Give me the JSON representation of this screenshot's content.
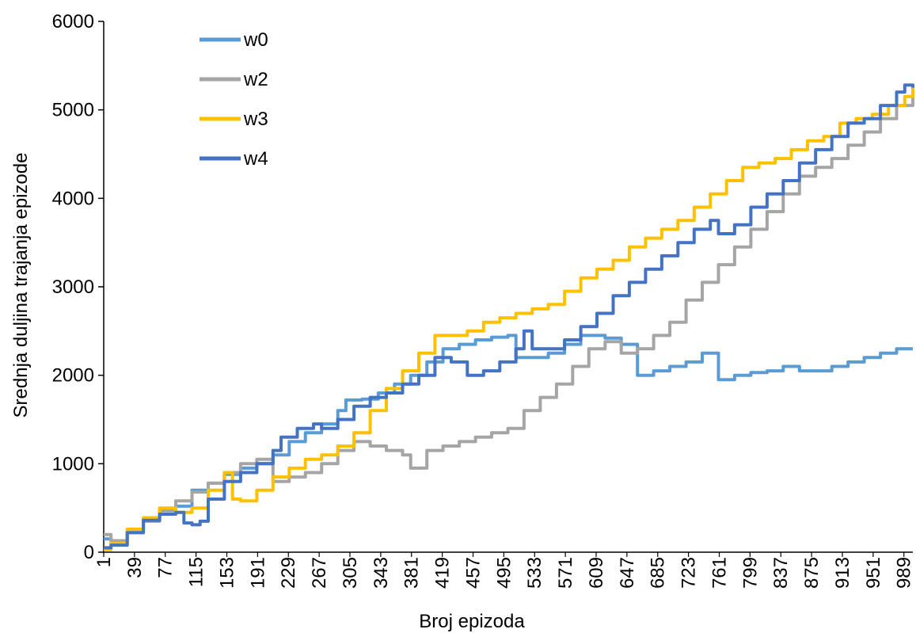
{
  "chart_data": {
    "type": "line",
    "title": "",
    "xlabel": "Broj epizoda",
    "ylabel": "Srednja duljina trajanja epizode",
    "xlim": [
      1,
      1000
    ],
    "ylim": [
      0,
      6000
    ],
    "y_ticks": [
      "0",
      "1000",
      "2000",
      "3000",
      "4000",
      "5000",
      "6000"
    ],
    "x_ticks": [
      "1",
      "39",
      "77",
      "115",
      "153",
      "191",
      "229",
      "267",
      "305",
      "343",
      "381",
      "419",
      "457",
      "495",
      "533",
      "571",
      "609",
      "647",
      "685",
      "723",
      "761",
      "799",
      "837",
      "875",
      "913",
      "951",
      "989"
    ],
    "grid": false,
    "legend_position": "top-left",
    "series": [
      {
        "name": "w0",
        "color": "#5b9bd5",
        "points": [
          [
            1,
            150
          ],
          [
            10,
            120
          ],
          [
            30,
            250
          ],
          [
            50,
            380
          ],
          [
            70,
            470
          ],
          [
            90,
            520
          ],
          [
            110,
            700
          ],
          [
            130,
            780
          ],
          [
            150,
            880
          ],
          [
            170,
            950
          ],
          [
            190,
            1000
          ],
          [
            210,
            1100
          ],
          [
            230,
            1250
          ],
          [
            250,
            1350
          ],
          [
            270,
            1450
          ],
          [
            290,
            1600
          ],
          [
            300,
            1720
          ],
          [
            320,
            1730
          ],
          [
            340,
            1800
          ],
          [
            360,
            1900
          ],
          [
            380,
            2000
          ],
          [
            400,
            2150
          ],
          [
            420,
            2300
          ],
          [
            440,
            2350
          ],
          [
            460,
            2400
          ],
          [
            480,
            2430
          ],
          [
            500,
            2450
          ],
          [
            510,
            2200
          ],
          [
            530,
            2200
          ],
          [
            550,
            2250
          ],
          [
            570,
            2350
          ],
          [
            590,
            2450
          ],
          [
            600,
            2450
          ],
          [
            620,
            2420
          ],
          [
            640,
            2350
          ],
          [
            660,
            2000
          ],
          [
            680,
            2050
          ],
          [
            700,
            2100
          ],
          [
            720,
            2150
          ],
          [
            740,
            2250
          ],
          [
            760,
            1950
          ],
          [
            780,
            2000
          ],
          [
            800,
            2030
          ],
          [
            820,
            2050
          ],
          [
            840,
            2100
          ],
          [
            860,
            2050
          ],
          [
            880,
            2050
          ],
          [
            900,
            2100
          ],
          [
            920,
            2150
          ],
          [
            940,
            2200
          ],
          [
            960,
            2250
          ],
          [
            980,
            2300
          ],
          [
            1000,
            2300
          ]
        ]
      },
      {
        "name": "w2",
        "color": "#a5a5a5",
        "points": [
          [
            1,
            200
          ],
          [
            10,
            130
          ],
          [
            30,
            230
          ],
          [
            50,
            350
          ],
          [
            70,
            480
          ],
          [
            90,
            580
          ],
          [
            110,
            680
          ],
          [
            130,
            780
          ],
          [
            150,
            900
          ],
          [
            170,
            1000
          ],
          [
            190,
            1050
          ],
          [
            210,
            800
          ],
          [
            230,
            850
          ],
          [
            250,
            900
          ],
          [
            270,
            1000
          ],
          [
            290,
            1150
          ],
          [
            310,
            1250
          ],
          [
            330,
            1200
          ],
          [
            350,
            1150
          ],
          [
            370,
            1100
          ],
          [
            380,
            950
          ],
          [
            400,
            1150
          ],
          [
            420,
            1200
          ],
          [
            440,
            1250
          ],
          [
            460,
            1300
          ],
          [
            480,
            1350
          ],
          [
            500,
            1400
          ],
          [
            520,
            1600
          ],
          [
            540,
            1750
          ],
          [
            560,
            1900
          ],
          [
            580,
            2100
          ],
          [
            600,
            2300
          ],
          [
            620,
            2380
          ],
          [
            640,
            2250
          ],
          [
            660,
            2300
          ],
          [
            680,
            2450
          ],
          [
            700,
            2600
          ],
          [
            720,
            2850
          ],
          [
            740,
            3050
          ],
          [
            760,
            3250
          ],
          [
            780,
            3450
          ],
          [
            800,
            3650
          ],
          [
            820,
            3850
          ],
          [
            840,
            4050
          ],
          [
            860,
            4250
          ],
          [
            880,
            4350
          ],
          [
            900,
            4450
          ],
          [
            920,
            4600
          ],
          [
            940,
            4750
          ],
          [
            960,
            4900
          ],
          [
            980,
            5050
          ],
          [
            1000,
            5200
          ]
        ]
      },
      {
        "name": "w3",
        "color": "#ffc000",
        "points": [
          [
            1,
            30
          ],
          [
            10,
            100
          ],
          [
            30,
            260
          ],
          [
            50,
            390
          ],
          [
            70,
            500
          ],
          [
            90,
            450
          ],
          [
            110,
            500
          ],
          [
            130,
            700
          ],
          [
            150,
            900
          ],
          [
            160,
            600
          ],
          [
            170,
            580
          ],
          [
            190,
            700
          ],
          [
            210,
            850
          ],
          [
            230,
            950
          ],
          [
            250,
            1050
          ],
          [
            270,
            1100
          ],
          [
            290,
            1200
          ],
          [
            310,
            1350
          ],
          [
            330,
            1600
          ],
          [
            350,
            1850
          ],
          [
            370,
            2050
          ],
          [
            390,
            2250
          ],
          [
            410,
            2450
          ],
          [
            430,
            2450
          ],
          [
            450,
            2500
          ],
          [
            470,
            2600
          ],
          [
            490,
            2650
          ],
          [
            510,
            2700
          ],
          [
            530,
            2750
          ],
          [
            550,
            2800
          ],
          [
            570,
            2950
          ],
          [
            590,
            3100
          ],
          [
            610,
            3200
          ],
          [
            630,
            3300
          ],
          [
            650,
            3450
          ],
          [
            670,
            3550
          ],
          [
            690,
            3650
          ],
          [
            710,
            3750
          ],
          [
            730,
            3900
          ],
          [
            750,
            4050
          ],
          [
            770,
            4200
          ],
          [
            790,
            4350
          ],
          [
            810,
            4400
          ],
          [
            830,
            4450
          ],
          [
            850,
            4550
          ],
          [
            870,
            4650
          ],
          [
            890,
            4700
          ],
          [
            910,
            4850
          ],
          [
            930,
            4900
          ],
          [
            950,
            4950
          ],
          [
            970,
            5050
          ],
          [
            990,
            5150
          ],
          [
            1000,
            5250
          ]
        ]
      },
      {
        "name": "w4",
        "color": "#4472c4",
        "points": [
          [
            1,
            50
          ],
          [
            10,
            80
          ],
          [
            30,
            220
          ],
          [
            50,
            360
          ],
          [
            70,
            430
          ],
          [
            90,
            450
          ],
          [
            100,
            330
          ],
          [
            110,
            310
          ],
          [
            120,
            350
          ],
          [
            130,
            600
          ],
          [
            150,
            800
          ],
          [
            170,
            900
          ],
          [
            190,
            1000
          ],
          [
            210,
            1150
          ],
          [
            220,
            1300
          ],
          [
            240,
            1400
          ],
          [
            260,
            1450
          ],
          [
            270,
            1400
          ],
          [
            290,
            1500
          ],
          [
            310,
            1650
          ],
          [
            330,
            1750
          ],
          [
            350,
            1800
          ],
          [
            370,
            1900
          ],
          [
            390,
            2000
          ],
          [
            410,
            2200
          ],
          [
            430,
            2150
          ],
          [
            450,
            2000
          ],
          [
            470,
            2050
          ],
          [
            490,
            2150
          ],
          [
            510,
            2300
          ],
          [
            520,
            2500
          ],
          [
            530,
            2300
          ],
          [
            550,
            2300
          ],
          [
            570,
            2400
          ],
          [
            590,
            2550
          ],
          [
            610,
            2700
          ],
          [
            630,
            2900
          ],
          [
            650,
            3050
          ],
          [
            670,
            3200
          ],
          [
            690,
            3350
          ],
          [
            710,
            3500
          ],
          [
            730,
            3650
          ],
          [
            750,
            3750
          ],
          [
            760,
            3600
          ],
          [
            780,
            3700
          ],
          [
            800,
            3900
          ],
          [
            820,
            4050
          ],
          [
            840,
            4200
          ],
          [
            860,
            4400
          ],
          [
            880,
            4550
          ],
          [
            900,
            4700
          ],
          [
            920,
            4850
          ],
          [
            940,
            4900
          ],
          [
            960,
            5050
          ],
          [
            980,
            5200
          ],
          [
            990,
            5280
          ],
          [
            1000,
            5250
          ]
        ]
      }
    ]
  }
}
